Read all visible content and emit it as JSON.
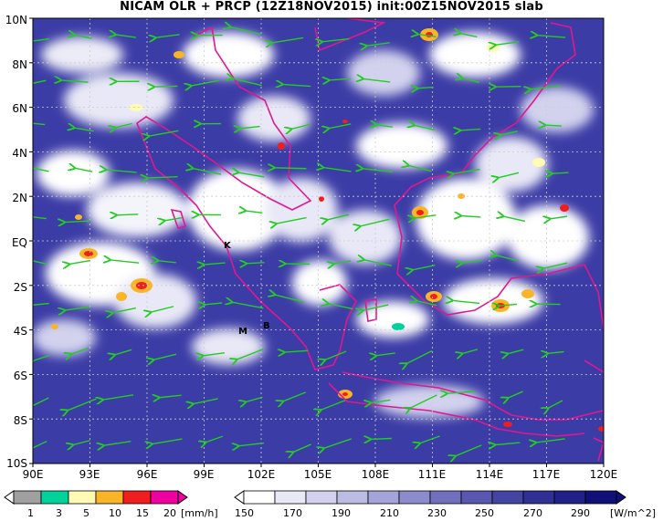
{
  "title": "NICAM OLR + PRCP (12Z18NOV2015) init:00Z15NOV2015 slab",
  "map": {
    "lat_labels": [
      "10N",
      "8N",
      "6N",
      "4N",
      "2N",
      "EQ",
      "2S",
      "4S",
      "6S",
      "8S",
      "10S"
    ],
    "lon_labels": [
      "90E",
      "93E",
      "96E",
      "99E",
      "102E",
      "105E",
      "108E",
      "111E",
      "114E",
      "117E",
      "120E"
    ],
    "place_labels": [
      "K",
      "M",
      "B"
    ],
    "extent": {
      "lon_min": 90,
      "lon_max": 120,
      "lat_min": -10,
      "lat_max": 10
    }
  },
  "prcp_colorbar": {
    "labels": [
      "1",
      "3",
      "5",
      "10",
      "15",
      "20"
    ],
    "unit": "[mm/h]",
    "colors": [
      "#a0a0a0",
      "#00d29b",
      "#fffab4",
      "#fab428",
      "#f01e1e",
      "#f000a0"
    ]
  },
  "olr_colorbar": {
    "labels": [
      "150",
      "170",
      "190",
      "210",
      "230",
      "250",
      "270",
      "290"
    ],
    "unit": "[W/m^2]",
    "colors": [
      "#ffffff",
      "#e8e8f6",
      "#d2d2ee",
      "#bbbbe4",
      "#a4a4d8",
      "#8c8ccc",
      "#7070be",
      "#5858b0",
      "#4444a2",
      "#303094",
      "#202088",
      "#101078"
    ]
  },
  "colors": {
    "coastline": "#e01890",
    "wind_vector": "#22cc22",
    "grid": "#cccccc"
  }
}
